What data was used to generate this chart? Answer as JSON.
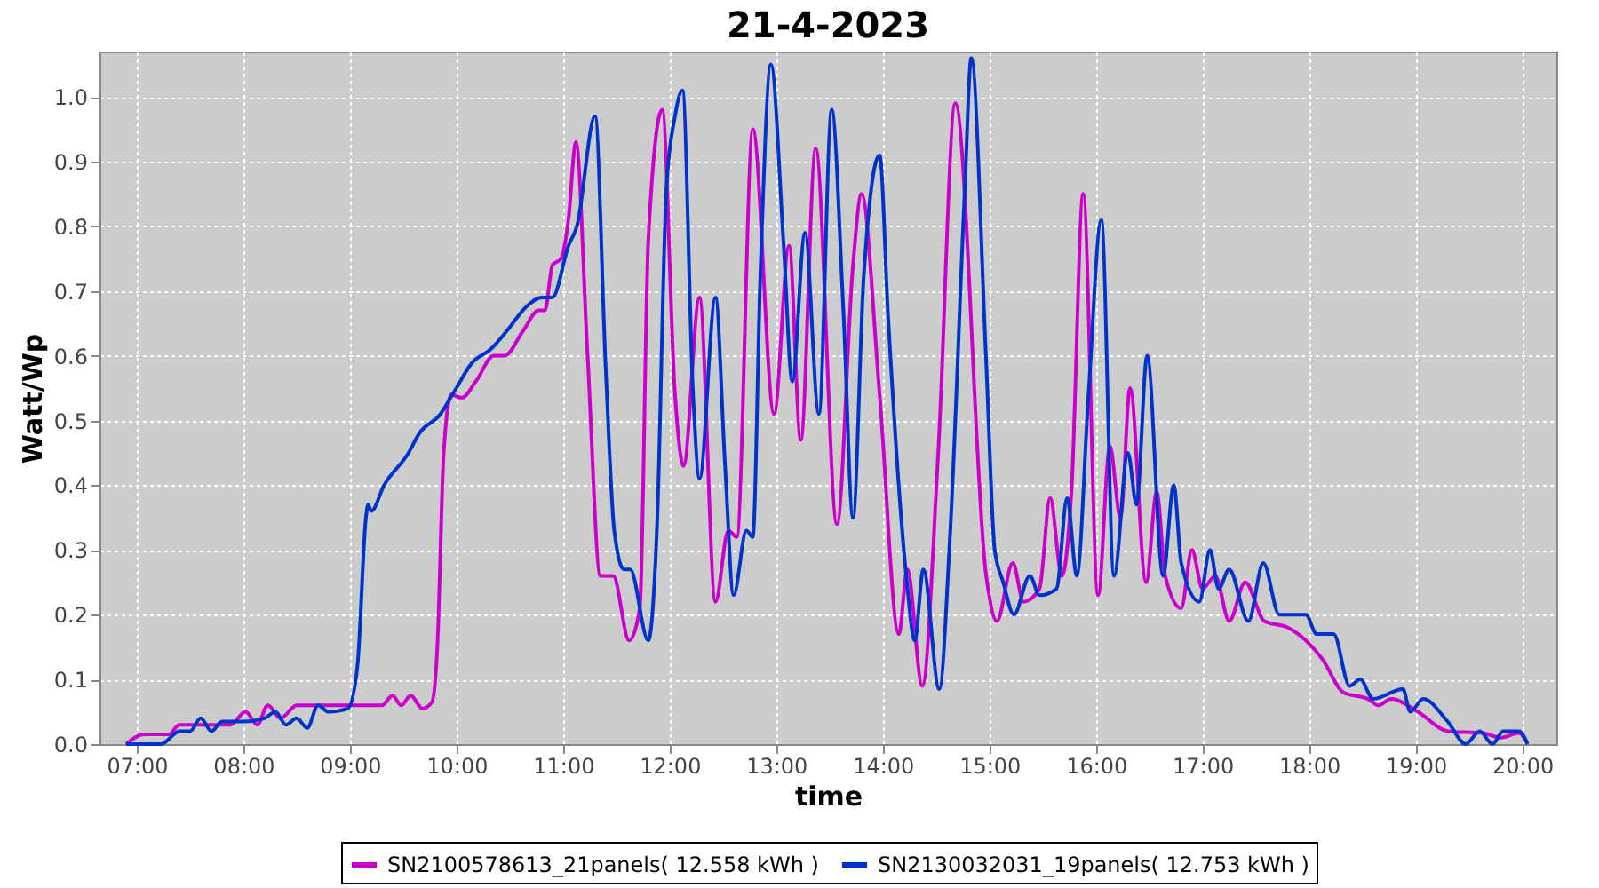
{
  "chart_data": {
    "type": "line",
    "title": "21-4-2023",
    "xlabel": "time",
    "ylabel": "Watt/Wp",
    "xlim": [
      6.65,
      20.32
    ],
    "ylim": [
      0,
      1.07
    ],
    "xticks": [
      {
        "value": 7,
        "label": "07:00"
      },
      {
        "value": 8,
        "label": "08:00"
      },
      {
        "value": 9,
        "label": "09:00"
      },
      {
        "value": 10,
        "label": "10:00"
      },
      {
        "value": 11,
        "label": "11:00"
      },
      {
        "value": 12,
        "label": "12:00"
      },
      {
        "value": 13,
        "label": "13:00"
      },
      {
        "value": 14,
        "label": "14:00"
      },
      {
        "value": 15,
        "label": "15:00"
      },
      {
        "value": 16,
        "label": "16:00"
      },
      {
        "value": 17,
        "label": "17:00"
      },
      {
        "value": 18,
        "label": "18:00"
      },
      {
        "value": 19,
        "label": "19:00"
      },
      {
        "value": 20,
        "label": "20:00"
      }
    ],
    "yticks": [
      {
        "value": 0,
        "label": "0.0"
      },
      0.1,
      0.2,
      0.3,
      0.4,
      0.5,
      0.6,
      0.7,
      0.8,
      0.9,
      {
        "value": 1,
        "label": "1.0"
      }
    ],
    "grid": true,
    "legend": "bottom",
    "series": [
      {
        "name": "SN2100578613_21panels( 12.558 kWh )",
        "color": "#cc00cc",
        "x": [
          6.9,
          7.07,
          7.3,
          7.4,
          7.68,
          7.88,
          8.02,
          8.13,
          8.23,
          8.35,
          8.5,
          9.3,
          9.4,
          9.48,
          9.57,
          9.68,
          9.77,
          9.82,
          9.88,
          9.95,
          10.05,
          10.18,
          10.35,
          10.45,
          10.63,
          10.77,
          10.83,
          10.9,
          10.98,
          11.05,
          11.12,
          11.23,
          11.35,
          11.47,
          11.62,
          11.72,
          11.8,
          11.93,
          12.05,
          12.13,
          12.28,
          12.43,
          12.55,
          12.63,
          12.78,
          12.98,
          13.12,
          13.23,
          13.37,
          13.57,
          13.72,
          13.8,
          13.97,
          14.15,
          14.23,
          14.37,
          14.52,
          14.68,
          14.97,
          15.07,
          15.22,
          15.32,
          15.47,
          15.57,
          15.68,
          15.77,
          15.88,
          16.02,
          16.13,
          16.23,
          16.32,
          16.47,
          16.57,
          16.65,
          16.8,
          16.9,
          17.0,
          17.12,
          17.25,
          17.4,
          17.58,
          17.8,
          17.97,
          18.13,
          18.32,
          18.55,
          18.65,
          18.77,
          19.02,
          19.3,
          19.63,
          19.8,
          19.97,
          20.05
        ],
        "values": [
          0,
          0.015,
          0.015,
          0.03,
          0.03,
          0.03,
          0.05,
          0.03,
          0.06,
          0.04,
          0.06,
          0.06,
          0.075,
          0.06,
          0.075,
          0.055,
          0.065,
          0.15,
          0.45,
          0.54,
          0.535,
          0.56,
          0.6,
          0.6,
          0.64,
          0.67,
          0.67,
          0.74,
          0.75,
          0.81,
          0.93,
          0.6,
          0.26,
          0.26,
          0.16,
          0.21,
          0.78,
          0.98,
          0.54,
          0.43,
          0.69,
          0.22,
          0.33,
          0.32,
          0.95,
          0.51,
          0.77,
          0.47,
          0.92,
          0.34,
          0.74,
          0.85,
          0.54,
          0.17,
          0.27,
          0.09,
          0.45,
          0.99,
          0.26,
          0.19,
          0.28,
          0.22,
          0.24,
          0.38,
          0.26,
          0.39,
          0.85,
          0.23,
          0.46,
          0.35,
          0.55,
          0.25,
          0.39,
          0.26,
          0.21,
          0.3,
          0.24,
          0.26,
          0.19,
          0.25,
          0.19,
          0.18,
          0.16,
          0.13,
          0.08,
          0.07,
          0.06,
          0.07,
          0.05,
          0.02,
          0.017,
          0.01,
          0.017,
          0
        ]
      },
      {
        "name": "SN2130032031_19panels( 12.753 kWh )",
        "color": "#0033cc",
        "x": [
          6.9,
          7.23,
          7.4,
          7.5,
          7.6,
          7.7,
          7.8,
          8.0,
          8.2,
          8.3,
          8.4,
          8.5,
          8.6,
          8.7,
          8.8,
          8.98,
          9.07,
          9.15,
          9.17,
          9.2,
          9.32,
          9.55,
          9.65,
          9.85,
          9.98,
          10.15,
          10.32,
          10.48,
          10.65,
          10.8,
          10.9,
          11.05,
          11.13,
          11.3,
          11.4,
          11.48,
          11.57,
          11.63,
          11.8,
          11.88,
          11.97,
          12.05,
          12.12,
          12.22,
          12.28,
          12.43,
          12.52,
          12.6,
          12.72,
          12.78,
          12.85,
          12.95,
          13.07,
          13.15,
          13.27,
          13.4,
          13.52,
          13.63,
          13.72,
          13.82,
          13.97,
          14.05,
          14.22,
          14.3,
          14.38,
          14.53,
          14.63,
          14.77,
          14.83,
          14.97,
          15.05,
          15.13,
          15.23,
          15.38,
          15.47,
          15.63,
          15.73,
          15.82,
          15.93,
          16.05,
          16.17,
          16.3,
          16.38,
          16.48,
          16.63,
          16.73,
          16.8,
          16.97,
          17.07,
          17.15,
          17.25,
          17.43,
          17.57,
          17.72,
          17.97,
          18.07,
          18.23,
          18.38,
          18.48,
          18.6,
          18.88,
          18.95,
          19.07,
          19.3,
          19.47,
          19.6,
          19.72,
          19.82,
          19.97,
          20.05
        ],
        "values": [
          0,
          0,
          0.02,
          0.02,
          0.04,
          0.02,
          0.035,
          0.035,
          0.04,
          0.05,
          0.03,
          0.04,
          0.025,
          0.06,
          0.05,
          0.055,
          0.12,
          0.35,
          0.37,
          0.36,
          0.4,
          0.45,
          0.48,
          0.51,
          0.545,
          0.59,
          0.61,
          0.64,
          0.675,
          0.69,
          0.69,
          0.77,
          0.8,
          0.97,
          0.58,
          0.33,
          0.27,
          0.27,
          0.16,
          0.33,
          0.86,
          0.97,
          1.01,
          0.54,
          0.41,
          0.69,
          0.43,
          0.23,
          0.33,
          0.32,
          0.72,
          1.05,
          0.77,
          0.56,
          0.79,
          0.51,
          0.98,
          0.67,
          0.35,
          0.72,
          0.91,
          0.66,
          0.26,
          0.16,
          0.27,
          0.085,
          0.32,
          0.86,
          1.06,
          0.59,
          0.3,
          0.25,
          0.2,
          0.26,
          0.23,
          0.24,
          0.38,
          0.26,
          0.54,
          0.81,
          0.26,
          0.45,
          0.37,
          0.6,
          0.26,
          0.4,
          0.28,
          0.22,
          0.3,
          0.24,
          0.27,
          0.19,
          0.28,
          0.2,
          0.2,
          0.17,
          0.17,
          0.09,
          0.1,
          0.07,
          0.085,
          0.05,
          0.07,
          0.035,
          0,
          0.02,
          0,
          0.02,
          0.02,
          0
        ]
      }
    ]
  }
}
